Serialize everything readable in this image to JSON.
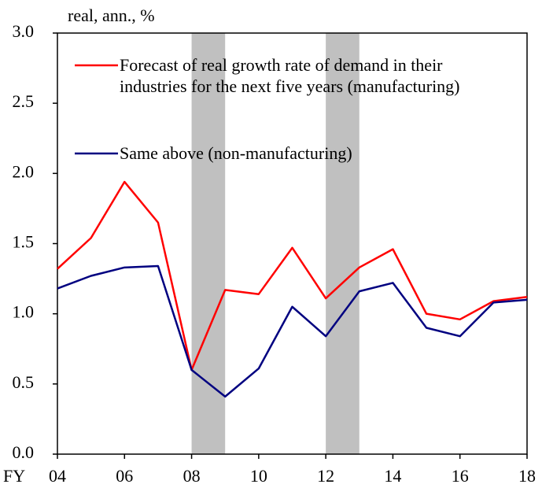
{
  "chart_data": {
    "type": "line",
    "y_label": "real, ann., %",
    "x_label": "FY",
    "x": [
      2004,
      2005,
      2006,
      2007,
      2008,
      2009,
      2010,
      2011,
      2012,
      2013,
      2014,
      2015,
      2016,
      2017,
      2018
    ],
    "series": [
      {
        "name": "Forecast of real growth rate of demand in their industries for the next five years (manufacturing)",
        "color": "#ff0000",
        "values": [
          1.32,
          1.54,
          1.94,
          1.65,
          0.6,
          1.17,
          1.14,
          1.47,
          1.11,
          1.33,
          1.46,
          1.0,
          0.96,
          1.09,
          1.12
        ]
      },
      {
        "name": "Same above (non-manufacturing)",
        "color": "#000080",
        "values": [
          1.18,
          1.27,
          1.33,
          1.34,
          0.6,
          0.41,
          0.61,
          1.05,
          0.84,
          1.16,
          1.22,
          0.9,
          0.84,
          1.08,
          1.1
        ]
      }
    ],
    "shaded_ranges": [
      [
        2008,
        2009
      ],
      [
        2012,
        2013
      ]
    ],
    "shade_color": "#c0c0c0",
    "xlim": [
      2004,
      2018
    ],
    "xticks": [
      {
        "value": 2004,
        "label": "04"
      },
      {
        "value": 2006,
        "label": "06"
      },
      {
        "value": 2008,
        "label": "08"
      },
      {
        "value": 2010,
        "label": "10"
      },
      {
        "value": 2012,
        "label": "12"
      },
      {
        "value": 2014,
        "label": "14"
      },
      {
        "value": 2016,
        "label": "16"
      },
      {
        "value": 2018,
        "label": "18"
      }
    ],
    "ylim": [
      0,
      3
    ],
    "yticks": [
      {
        "value": 0,
        "label": "0.0"
      },
      0.5,
      {
        "value": 1,
        "label": "1.0"
      },
      1.5,
      {
        "value": 2,
        "label": "2.0"
      },
      2.5,
      {
        "value": 3,
        "label": "3.0"
      }
    ],
    "grid": false
  }
}
